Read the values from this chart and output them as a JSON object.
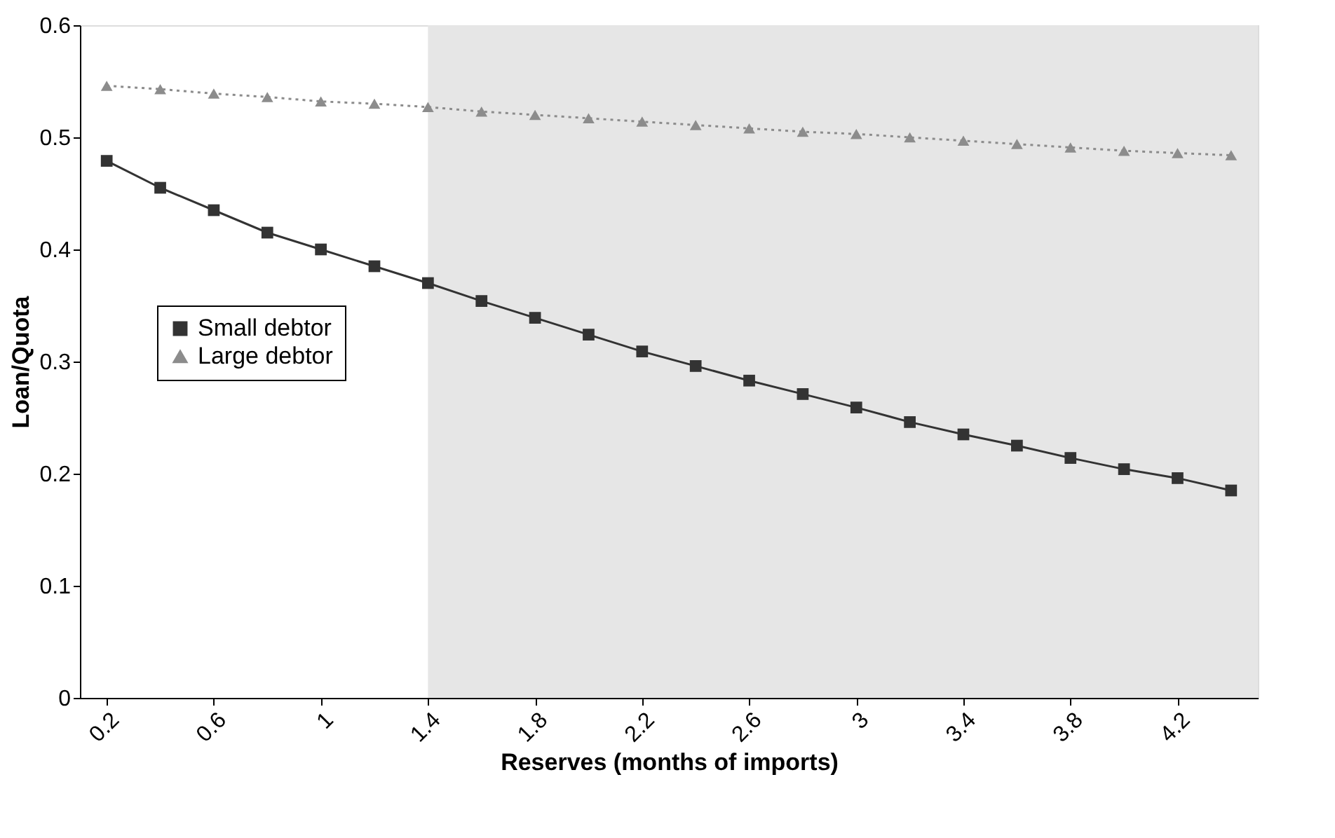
{
  "chart_data": {
    "type": "line",
    "xlabel": "Reserves (months of imports)",
    "ylabel": "Loan/Quota",
    "x": [
      0.2,
      0.4,
      0.6,
      0.8,
      1.0,
      1.2,
      1.4,
      1.6,
      1.8,
      2.0,
      2.2,
      2.4,
      2.6,
      2.8,
      3.0,
      3.2,
      3.4,
      3.6,
      3.8,
      4.0,
      4.2,
      4.4
    ],
    "series": [
      {
        "name": "Small debtor",
        "color": "#333333",
        "marker": "square",
        "line_style": "solid",
        "values": [
          0.479,
          0.455,
          0.435,
          0.415,
          0.4,
          0.385,
          0.37,
          0.354,
          0.339,
          0.324,
          0.309,
          0.296,
          0.283,
          0.271,
          0.259,
          0.246,
          0.235,
          0.225,
          0.214,
          0.204,
          0.196,
          0.185
        ]
      },
      {
        "name": "Large debtor",
        "color": "#8c8c8c",
        "marker": "triangle",
        "line_style": "dotted",
        "values": [
          0.546,
          0.543,
          0.539,
          0.536,
          0.532,
          0.53,
          0.527,
          0.523,
          0.52,
          0.517,
          0.514,
          0.511,
          0.508,
          0.505,
          0.503,
          0.5,
          0.497,
          0.494,
          0.491,
          0.488,
          0.486,
          0.484
        ]
      }
    ],
    "xlim": [
      0.1,
      4.5
    ],
    "xticks": [
      0.2,
      0.6,
      1,
      1.4,
      1.8,
      2.2,
      2.6,
      3,
      3.4,
      3.8,
      4.2
    ],
    "ylim": [
      0,
      0.6
    ],
    "yticks": [
      0,
      0.1,
      0.2,
      0.3,
      0.4,
      0.5,
      0.6
    ],
    "bands": [
      {
        "axis": "x",
        "from": 1.4,
        "to": 4.5,
        "color": "#e6e6e6"
      }
    ],
    "grid": false,
    "legend": "left"
  }
}
